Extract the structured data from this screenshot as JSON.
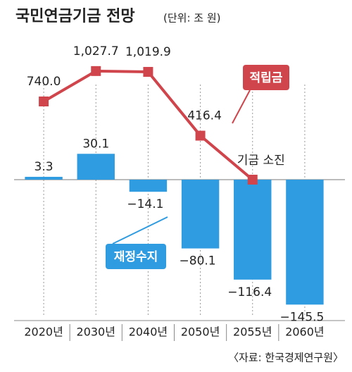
{
  "chart_data": {
    "type": "bar-line",
    "title": "국민연금기금 전망",
    "subtitle": "(단위: 조 원)",
    "source": "〈자료: 한국경제연구원〉",
    "categories": [
      "2020년",
      "2030년",
      "2040년",
      "2050년",
      "2055년",
      "2060년"
    ],
    "ylim": [
      -160,
      160
    ],
    "y2lim": [
      -1300,
      1300
    ],
    "annotations": [
      {
        "text": "기금 소진",
        "category": 4
      }
    ],
    "series": [
      {
        "name": "재정수지",
        "type": "bar",
        "color": "#2f9be0",
        "values": [
          3.3,
          30.1,
          -14.1,
          -80.1,
          -116.4,
          -145.5
        ],
        "value_labels": [
          "3.3",
          "30.1",
          "−14.1",
          "−80.1",
          "−116.4",
          "−145.5"
        ]
      },
      {
        "name": "적립금",
        "type": "line",
        "axis": "y2",
        "color": "#d0454c",
        "values": [
          740.0,
          1027.7,
          1019.9,
          416.4,
          0,
          null
        ],
        "value_labels": [
          "740.0",
          "1,027.7",
          "1,019.9",
          "416.4",
          null,
          null
        ]
      }
    ]
  }
}
